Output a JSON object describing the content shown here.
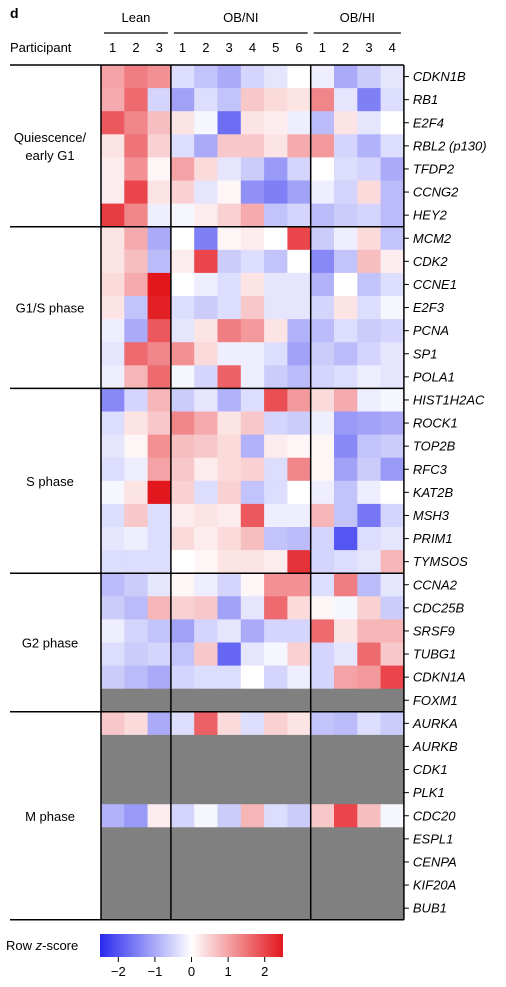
{
  "chart_data": {
    "type": "heatmap",
    "panel_label": "d",
    "participant_label": "Participant",
    "groups": [
      {
        "name": "Lean",
        "participants": [
          "1",
          "2",
          "3"
        ]
      },
      {
        "name": "OB/NI",
        "participants": [
          "1",
          "2",
          "3",
          "4",
          "5",
          "6"
        ]
      },
      {
        "name": "OB/HI",
        "participants": [
          "1",
          "2",
          "3",
          "4"
        ]
      }
    ],
    "phases": [
      {
        "name": "Quiescence/ early G1",
        "lines": [
          "Quiescence/",
          "early G1"
        ],
        "genes": [
          "CDKN1B",
          "RB1",
          "E2F4",
          "RBL2 (p130)",
          "TFDP2",
          "CCNG2",
          "HEY2"
        ]
      },
      {
        "name": "G1/S phase",
        "lines": [
          "G1/S phase"
        ],
        "genes": [
          "MCM2",
          "CDK2",
          "CCNE1",
          "E2F3",
          "PCNA",
          "SP1",
          "POLA1"
        ]
      },
      {
        "name": "S phase",
        "lines": [
          "S phase"
        ],
        "genes": [
          "HIST1H2AC",
          "ROCK1",
          "TOP2B",
          "RFC3",
          "KAT2B",
          "MSH3",
          "PRIM1",
          "TYMSOS"
        ]
      },
      {
        "name": "G2 phase",
        "lines": [
          "G2 phase"
        ],
        "genes": [
          "CCNA2",
          "CDC25B",
          "SRSF9",
          "TUBG1",
          "CDKN1A",
          "FOXM1"
        ]
      },
      {
        "name": "M phase",
        "lines": [
          "M phase"
        ],
        "genes": [
          "AURKA",
          "AURKB",
          "CDK1",
          "PLK1",
          "CDC20",
          "ESPL1",
          "CENPA",
          "KIF20A",
          "BUB1"
        ]
      }
    ],
    "values": {
      "CDKN1B": [
        1.0,
        1.4,
        1.2,
        -0.4,
        -0.7,
        -1.0,
        -0.5,
        -0.3,
        0.0,
        -0.2,
        -1.0,
        -0.6,
        -0.3
      ],
      "RB1": [
        0.9,
        1.6,
        -0.5,
        -1.1,
        -0.4,
        -0.7,
        0.6,
        0.4,
        0.3,
        1.3,
        -0.3,
        -1.5,
        -0.4
      ],
      "E2F4": [
        1.8,
        1.3,
        0.7,
        0.3,
        -0.1,
        -1.7,
        0.3,
        0.2,
        -0.2,
        -0.8,
        0.3,
        -0.3,
        0.0
      ],
      "RBL2 (p130)": [
        0.3,
        1.5,
        0.5,
        -0.4,
        -1.0,
        0.6,
        0.6,
        0.3,
        0.9,
        1.1,
        -0.5,
        -0.9,
        -0.4
      ],
      "TFDP2": [
        0.2,
        1.2,
        0.1,
        1.0,
        0.4,
        -0.3,
        -0.6,
        -1.2,
        -0.5,
        0.0,
        -0.4,
        -0.5,
        -1.0
      ],
      "CCNG2": [
        0.2,
        2.0,
        0.3,
        0.5,
        -0.3,
        0.1,
        -1.3,
        -1.5,
        -1.1,
        -0.2,
        -0.5,
        0.4,
        -0.8
      ],
      "HEY2": [
        2.1,
        1.3,
        -0.2,
        -0.1,
        0.2,
        0.5,
        0.9,
        -0.7,
        -0.5,
        -0.8,
        -0.6,
        -0.5,
        -0.8
      ],
      "MCM2": [
        0.3,
        0.9,
        -1.0,
        0.0,
        -1.5,
        0.1,
        0.2,
        0.0,
        2.0,
        -0.6,
        -0.2,
        0.4,
        -0.7
      ],
      "CDK2": [
        0.3,
        0.7,
        -0.8,
        0.2,
        2.0,
        -0.6,
        -0.4,
        -0.7,
        0.0,
        -1.4,
        -0.7,
        0.7,
        0.2
      ],
      "CCNE1": [
        0.4,
        0.9,
        2.5,
        0.0,
        -0.2,
        -0.4,
        0.3,
        -0.3,
        -0.3,
        -0.9,
        0.0,
        -0.7,
        -0.4
      ],
      "E2F3": [
        0.3,
        -0.7,
        2.4,
        -0.4,
        -0.6,
        -0.4,
        0.6,
        -0.3,
        -0.3,
        -0.5,
        0.3,
        -0.4,
        -0.1
      ],
      "PCNA": [
        -0.2,
        -1.0,
        1.8,
        -0.3,
        0.3,
        1.4,
        1.1,
        0.3,
        -0.9,
        -0.8,
        -0.4,
        -0.6,
        -0.5
      ],
      "SP1": [
        -0.3,
        1.6,
        1.3,
        1.2,
        0.4,
        -0.2,
        -0.2,
        -0.4,
        -1.1,
        -0.6,
        -0.8,
        -0.5,
        -0.3
      ],
      "POLA1": [
        -0.2,
        0.8,
        1.6,
        -0.1,
        -0.5,
        1.7,
        -0.2,
        -0.6,
        -0.8,
        -0.5,
        -0.4,
        -0.2,
        -0.3
      ],
      "HIST1H2AC": [
        -1.4,
        -0.5,
        0.8,
        -0.6,
        -0.3,
        -0.9,
        -0.4,
        1.9,
        1.1,
        0.4,
        0.9,
        -0.2,
        -0.1
      ],
      "ROCK1": [
        -0.4,
        0.3,
        0.6,
        1.3,
        0.9,
        0.3,
        0.6,
        -0.5,
        -0.6,
        -0.2,
        -1.2,
        -1.1,
        -1.0
      ],
      "TOP2B": [
        -0.3,
        0.1,
        1.2,
        0.7,
        0.6,
        0.4,
        -0.9,
        0.2,
        0.1,
        0.1,
        -1.4,
        -0.7,
        -0.6
      ],
      "RFC3": [
        -0.4,
        -0.2,
        1.0,
        0.6,
        0.2,
        0.4,
        0.5,
        -0.4,
        1.3,
        0.1,
        -1.1,
        -0.6,
        -1.2
      ],
      "KAT2B": [
        -0.1,
        0.3,
        2.7,
        0.5,
        -0.4,
        0.5,
        -0.7,
        -0.4,
        0.0,
        -0.2,
        -0.7,
        -0.2,
        0.0
      ],
      "MSH3": [
        -0.4,
        0.6,
        -0.4,
        0.2,
        0.3,
        0.2,
        1.8,
        -0.2,
        -0.2,
        0.8,
        -0.7,
        -1.6,
        -0.5
      ],
      "PRIM1": [
        -0.3,
        -0.2,
        -0.4,
        0.4,
        0.2,
        0.4,
        0.7,
        -0.7,
        -0.8,
        -0.5,
        -2.0,
        -0.4,
        -0.3
      ],
      "TYMSOS": [
        -0.4,
        -0.4,
        -0.4,
        0.0,
        0.1,
        0.3,
        0.3,
        0.2,
        2.2,
        -0.5,
        -0.4,
        -0.3,
        0.8
      ],
      "CCNA2": [
        -0.8,
        -0.6,
        -0.3,
        0.1,
        -0.2,
        -0.5,
        0.1,
        1.2,
        1.2,
        -0.4,
        1.4,
        -0.8,
        -0.3
      ],
      "CDC25B": [
        -0.6,
        -0.8,
        0.8,
        0.5,
        0.6,
        -1.1,
        -0.3,
        1.6,
        0.4,
        0.1,
        -0.1,
        0.5,
        -0.6
      ],
      "SRSF9": [
        -0.2,
        -0.5,
        -0.7,
        -1.1,
        -0.5,
        -0.3,
        -1.0,
        -0.5,
        -0.5,
        1.6,
        0.3,
        0.8,
        0.8
      ],
      "TUBG1": [
        -0.4,
        -0.6,
        -0.5,
        -0.7,
        0.6,
        -1.8,
        -0.3,
        -0.1,
        0.5,
        -0.5,
        -0.3,
        1.6,
        0.6
      ],
      "CDKN1A": [
        -0.6,
        -0.8,
        -1.0,
        -0.5,
        -0.4,
        -0.4,
        0.0,
        -0.5,
        -0.2,
        -0.5,
        1.0,
        1.1,
        2.0
      ],
      "FOXM1": [
        null,
        null,
        null,
        null,
        null,
        null,
        null,
        null,
        null,
        null,
        null,
        null,
        null
      ],
      "AURKA": [
        0.6,
        0.4,
        -1.0,
        -0.4,
        1.7,
        0.4,
        -0.4,
        0.5,
        0.3,
        -0.7,
        -0.8,
        -0.4,
        -0.6
      ],
      "AURKB": [
        null,
        null,
        null,
        null,
        null,
        null,
        null,
        null,
        null,
        null,
        null,
        null,
        null
      ],
      "CDK1": [
        null,
        null,
        null,
        null,
        null,
        null,
        null,
        null,
        null,
        null,
        null,
        null,
        null
      ],
      "PLK1": [
        null,
        null,
        null,
        null,
        null,
        null,
        null,
        null,
        null,
        null,
        null,
        null,
        null
      ],
      "CDC20": [
        -0.9,
        -1.2,
        0.2,
        -0.5,
        -0.1,
        -0.6,
        0.8,
        -0.4,
        -0.6,
        0.6,
        2.0,
        0.7,
        -0.1
      ],
      "ESPL1": [
        null,
        null,
        null,
        null,
        null,
        null,
        null,
        null,
        null,
        null,
        null,
        null,
        null
      ],
      "CENPA": [
        null,
        null,
        null,
        null,
        null,
        null,
        null,
        null,
        null,
        null,
        null,
        null,
        null
      ],
      "KIF20A": [
        null,
        null,
        null,
        null,
        null,
        null,
        null,
        null,
        null,
        null,
        null,
        null,
        null
      ],
      "BUB1": [
        null,
        null,
        null,
        null,
        null,
        null,
        null,
        null,
        null,
        null,
        null,
        null,
        null
      ]
    },
    "colorbar": {
      "label_prefix": "Row ",
      "label_italic": "z",
      "label_suffix": "-score",
      "min": -2.5,
      "max": 2.5,
      "ticks": [
        "−2",
        "−1",
        "0",
        "1",
        "2"
      ],
      "tick_values": [
        -2,
        -1,
        0,
        1,
        2
      ]
    },
    "colors": {
      "low": "#2a2af0",
      "mid": "#ffffff",
      "high": "#e3171e",
      "missing": "#808080"
    }
  }
}
